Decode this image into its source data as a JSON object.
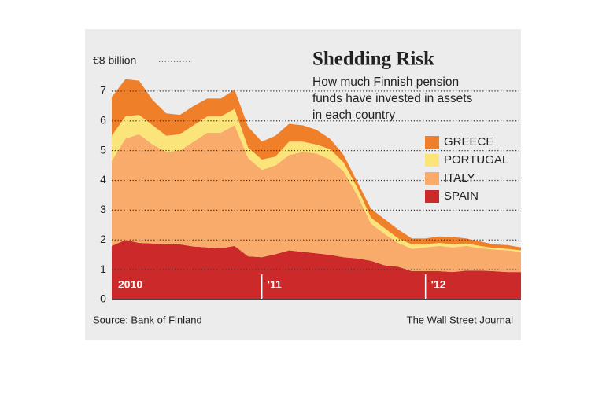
{
  "chart_data": {
    "type": "stacked-area",
    "title": "Shedding Risk",
    "subtitle": [
      "How much Finnish pension",
      "funds have invested in assets",
      "in each country"
    ],
    "source": "Source: Bank of Finland",
    "credit": "The Wall Street Journal",
    "categories": [
      "2010",
      null,
      null,
      null,
      null,
      null,
      null,
      null,
      null,
      null,
      null,
      "'11",
      null,
      null,
      null,
      null,
      null,
      null,
      null,
      null,
      null,
      null,
      null,
      "'12",
      null,
      null,
      null,
      null,
      null,
      null,
      null
    ],
    "series": [
      {
        "name": "GREECE",
        "color": "#f07f2a",
        "values": [
          1.3,
          1.25,
          1.15,
          0.85,
          0.75,
          0.65,
          0.65,
          0.6,
          0.6,
          0.65,
          0.7,
          0.6,
          0.7,
          0.6,
          0.55,
          0.5,
          0.35,
          0.25,
          0.2,
          0.3,
          0.3,
          0.3,
          0.2,
          0.2,
          0.22,
          0.25,
          0.17,
          0.15,
          0.12,
          0.13,
          0.1
        ]
      },
      {
        "name": "PORTUGAL",
        "color": "#fbe57a",
        "values": [
          0.85,
          0.75,
          0.65,
          0.65,
          0.55,
          0.55,
          0.55,
          0.55,
          0.55,
          0.55,
          0.35,
          0.35,
          0.3,
          0.45,
          0.35,
          0.3,
          0.35,
          0.3,
          0.25,
          0.2,
          0.2,
          0.15,
          0.15,
          0.1,
          0.1,
          0.1,
          0.08,
          0.08,
          0.05,
          0.05,
          0.05
        ]
      },
      {
        "name": "ITALY",
        "color": "#f9ab6c",
        "values": [
          2.85,
          3.4,
          3.65,
          3.32,
          3.1,
          3.15,
          3.52,
          3.85,
          3.88,
          4.05,
          3.3,
          2.93,
          2.98,
          3.2,
          3.35,
          3.35,
          3.2,
          2.88,
          2.12,
          1.25,
          1.05,
          0.8,
          0.75,
          0.8,
          0.85,
          0.83,
          0.83,
          0.75,
          0.73,
          0.73,
          0.68
        ]
      },
      {
        "name": "SPAIN",
        "color": "#cc2a2a",
        "values": [
          1.8,
          2.0,
          1.9,
          1.88,
          1.85,
          1.85,
          1.78,
          1.75,
          1.72,
          1.8,
          1.45,
          1.42,
          1.52,
          1.65,
          1.6,
          1.55,
          1.5,
          1.42,
          1.38,
          1.3,
          1.15,
          1.1,
          0.95,
          0.95,
          0.95,
          0.92,
          0.97,
          0.97,
          0.95,
          0.92,
          0.92
        ]
      }
    ],
    "ylim": [
      0,
      8
    ],
    "yticks": [
      0,
      1,
      2,
      3,
      4,
      5,
      6,
      7,
      {
        "value": 8,
        "label": "€8 billion"
      }
    ],
    "grid": true
  }
}
